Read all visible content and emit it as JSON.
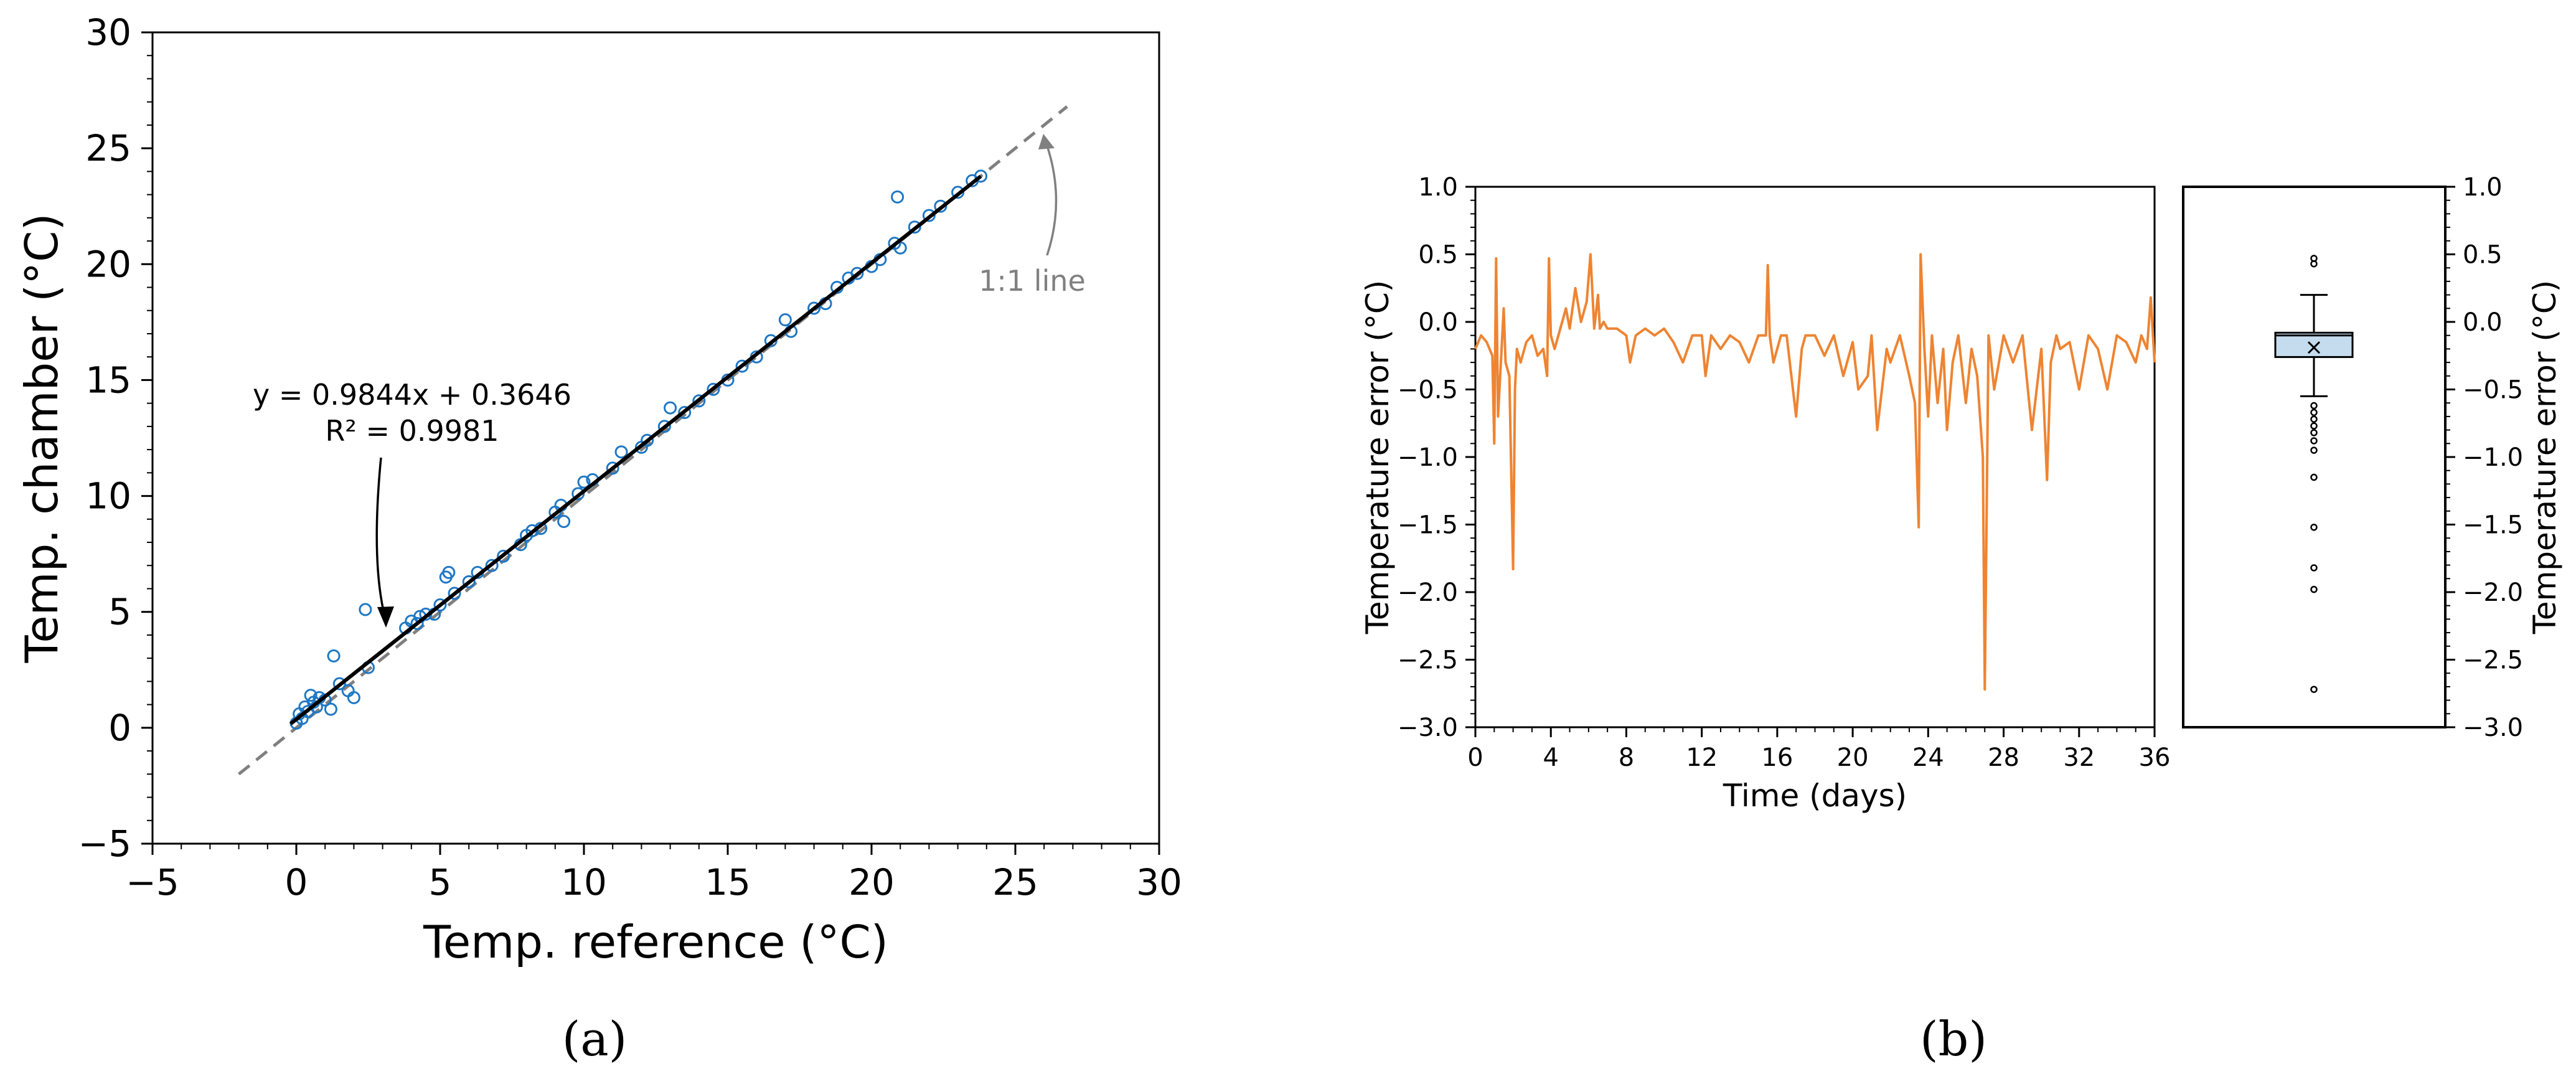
{
  "panels": {
    "a_label": "(a)",
    "b_label": "(b)"
  },
  "chart_data": [
    {
      "id": "a",
      "type": "scatter",
      "xlabel": "Temp. reference (°C)",
      "ylabel": "Temp. chamber (°C)",
      "xlim": [
        -5,
        30
      ],
      "ylim": [
        -5,
        30
      ],
      "xticks": [
        -5,
        0,
        5,
        10,
        15,
        20,
        25,
        30
      ],
      "yticks": [
        -5,
        0,
        5,
        10,
        15,
        20,
        25,
        30
      ],
      "xtick_labels": [
        "−5",
        "0",
        "5",
        "10",
        "15",
        "20",
        "25",
        "30"
      ],
      "ytick_labels": [
        "−5",
        "0",
        "5",
        "10",
        "15",
        "20",
        "25",
        "30"
      ],
      "grid": false,
      "marker_color": "#1f77c4",
      "fit_color": "#000000",
      "identity_color": "#808080",
      "points": [
        [
          0.0,
          0.2
        ],
        [
          0.1,
          0.6
        ],
        [
          0.2,
          0.4
        ],
        [
          0.3,
          0.9
        ],
        [
          0.4,
          0.7
        ],
        [
          0.5,
          1.4
        ],
        [
          0.6,
          1.1
        ],
        [
          0.7,
          0.9
        ],
        [
          0.8,
          1.3
        ],
        [
          1.0,
          1.2
        ],
        [
          1.2,
          0.8
        ],
        [
          1.3,
          3.1
        ],
        [
          1.5,
          1.9
        ],
        [
          1.8,
          1.6
        ],
        [
          2.0,
          1.3
        ],
        [
          2.5,
          2.6
        ],
        [
          2.4,
          5.1
        ],
        [
          3.8,
          4.3
        ],
        [
          4.0,
          4.6
        ],
        [
          4.2,
          4.5
        ],
        [
          4.3,
          4.8
        ],
        [
          4.5,
          4.9
        ],
        [
          4.8,
          4.9
        ],
        [
          5.0,
          5.3
        ],
        [
          5.2,
          6.5
        ],
        [
          5.3,
          6.7
        ],
        [
          5.5,
          5.8
        ],
        [
          6.0,
          6.3
        ],
        [
          6.3,
          6.7
        ],
        [
          6.8,
          7.0
        ],
        [
          7.2,
          7.4
        ],
        [
          7.8,
          7.9
        ],
        [
          8.0,
          8.3
        ],
        [
          8.2,
          8.5
        ],
        [
          8.5,
          8.6
        ],
        [
          9.0,
          9.3
        ],
        [
          9.2,
          9.6
        ],
        [
          9.3,
          8.9
        ],
        [
          9.8,
          10.1
        ],
        [
          10.0,
          10.6
        ],
        [
          10.3,
          10.7
        ],
        [
          11.0,
          11.2
        ],
        [
          11.3,
          11.9
        ],
        [
          12.0,
          12.1
        ],
        [
          12.2,
          12.4
        ],
        [
          12.8,
          13.0
        ],
        [
          13.0,
          13.8
        ],
        [
          13.5,
          13.6
        ],
        [
          14.0,
          14.1
        ],
        [
          14.5,
          14.6
        ],
        [
          15.0,
          15.0
        ],
        [
          15.5,
          15.6
        ],
        [
          16.0,
          16.0
        ],
        [
          16.5,
          16.7
        ],
        [
          17.0,
          17.6
        ],
        [
          17.2,
          17.1
        ],
        [
          18.0,
          18.1
        ],
        [
          18.4,
          18.3
        ],
        [
          18.8,
          19.0
        ],
        [
          19.2,
          19.4
        ],
        [
          19.5,
          19.6
        ],
        [
          20.0,
          19.9
        ],
        [
          20.3,
          20.2
        ],
        [
          20.8,
          20.9
        ],
        [
          20.9,
          22.9
        ],
        [
          21.0,
          20.7
        ],
        [
          21.5,
          21.6
        ],
        [
          22.0,
          22.1
        ],
        [
          22.4,
          22.5
        ],
        [
          23.0,
          23.1
        ],
        [
          23.5,
          23.6
        ],
        [
          23.8,
          23.8
        ]
      ],
      "fit": {
        "slope": 0.9844,
        "intercept": 0.3646,
        "x_range": [
          -0.2,
          23.8
        ]
      },
      "identity": {
        "x_range": [
          -2,
          26.8
        ]
      },
      "annotations": {
        "equation": "y = 0.9844x + 0.3646",
        "r2": "R² = 0.9981",
        "identity_label": "1:1 line"
      }
    },
    {
      "id": "b-time",
      "type": "line",
      "xlabel": "Time (days)",
      "ylabel": "Temperature error (°C)",
      "xlim": [
        0,
        36
      ],
      "ylim": [
        -3.0,
        1.0
      ],
      "xticks": [
        0,
        4,
        8,
        12,
        16,
        20,
        24,
        28,
        32,
        36
      ],
      "yticks": [
        -3.0,
        -2.5,
        -2.0,
        -1.5,
        -1.0,
        -0.5,
        0.0,
        0.5,
        1.0
      ],
      "ytick_labels": [
        "−3.0",
        "−2.5",
        "−2.0",
        "−1.5",
        "−1.0",
        "−0.5",
        "0.0",
        "0.5",
        "1.0"
      ],
      "grid": false,
      "series": [
        {
          "color": "#ee8432",
          "x": [
            0,
            0.3,
            0.6,
            0.9,
            1.0,
            1.1,
            1.2,
            1.5,
            1.6,
            1.8,
            2.0,
            2.1,
            2.2,
            2.4,
            2.7,
            3.0,
            3.3,
            3.6,
            3.8,
            3.9,
            4.0,
            4.2,
            4.5,
            4.8,
            5.0,
            5.3,
            5.6,
            5.9,
            6.1,
            6.3,
            6.5,
            6.6,
            6.8,
            7.0,
            7.5,
            8.0,
            8.2,
            8.5,
            9.0,
            9.5,
            10.0,
            10.5,
            11.0,
            11.5,
            12.0,
            12.2,
            12.5,
            13.0,
            13.5,
            14.0,
            14.5,
            15.0,
            15.4,
            15.5,
            15.6,
            15.8,
            16.2,
            16.5,
            17.0,
            17.3,
            17.5,
            18.0,
            18.5,
            19.0,
            19.5,
            20.0,
            20.3,
            20.8,
            21.0,
            21.3,
            21.8,
            22.0,
            22.5,
            23.0,
            23.3,
            23.5,
            23.6,
            23.8,
            24.0,
            24.2,
            24.5,
            24.8,
            25.0,
            25.3,
            25.6,
            26.0,
            26.3,
            26.6,
            26.9,
            27.0,
            27.2,
            27.5,
            28.0,
            28.5,
            29.0,
            29.5,
            30.0,
            30.3,
            30.5,
            30.8,
            31.0,
            31.5,
            32.0,
            32.5,
            33.0,
            33.5,
            34.0,
            34.5,
            35.0,
            35.3,
            35.6,
            35.8,
            36.0
          ],
          "values": [
            -0.2,
            -0.1,
            -0.15,
            -0.25,
            -0.9,
            0.47,
            -0.7,
            0.1,
            -0.3,
            -0.4,
            -1.83,
            -0.5,
            -0.2,
            -0.3,
            -0.15,
            -0.1,
            -0.25,
            -0.2,
            -0.4,
            0.47,
            -0.1,
            -0.2,
            -0.05,
            0.1,
            -0.05,
            0.25,
            0.0,
            0.15,
            0.5,
            -0.05,
            0.2,
            -0.05,
            0.0,
            -0.05,
            -0.05,
            -0.1,
            -0.3,
            -0.1,
            -0.05,
            -0.1,
            -0.05,
            -0.15,
            -0.3,
            -0.1,
            -0.1,
            -0.4,
            -0.1,
            -0.2,
            -0.1,
            -0.15,
            -0.3,
            -0.1,
            -0.1,
            0.42,
            -0.1,
            -0.3,
            -0.1,
            -0.1,
            -0.7,
            -0.2,
            -0.1,
            -0.1,
            -0.25,
            -0.1,
            -0.4,
            -0.15,
            -0.5,
            -0.4,
            -0.1,
            -0.8,
            -0.2,
            -0.3,
            -0.1,
            -0.4,
            -0.6,
            -1.52,
            0.5,
            -0.2,
            -0.7,
            -0.1,
            -0.6,
            -0.2,
            -0.8,
            -0.3,
            -0.1,
            -0.6,
            -0.2,
            -0.4,
            -1.0,
            -2.72,
            -0.1,
            -0.5,
            -0.1,
            -0.3,
            -0.1,
            -0.8,
            -0.2,
            -1.17,
            -0.3,
            -0.1,
            -0.2,
            -0.15,
            -0.5,
            -0.1,
            -0.2,
            -0.5,
            -0.1,
            -0.15,
            -0.3,
            -0.1,
            -0.2,
            0.18,
            -0.3
          ]
        }
      ]
    },
    {
      "id": "b-box",
      "type": "box",
      "ylabel": "Temperature error (°C)",
      "ylim": [
        -3.0,
        1.0
      ],
      "yticks": [
        -3.0,
        -2.5,
        -2.0,
        -1.5,
        -1.0,
        -0.5,
        0.0,
        0.5,
        1.0
      ],
      "ytick_labels": [
        "−3.0",
        "−2.5",
        "−2.0",
        "−1.5",
        "−1.0",
        "−0.5",
        "0.0",
        "0.5",
        "1.0"
      ],
      "box": {
        "q1": -0.26,
        "median": -0.1,
        "q3": -0.08,
        "mean": -0.19,
        "whisker_low": -0.55,
        "whisker_high": 0.2
      },
      "fill": "#c5dcee",
      "outliers": [
        0.47,
        0.43,
        -0.62,
        -0.67,
        -0.72,
        -0.77,
        -0.82,
        -0.88,
        -0.95,
        -1.15,
        -1.52,
        -1.82,
        -1.98,
        -2.72
      ]
    }
  ]
}
